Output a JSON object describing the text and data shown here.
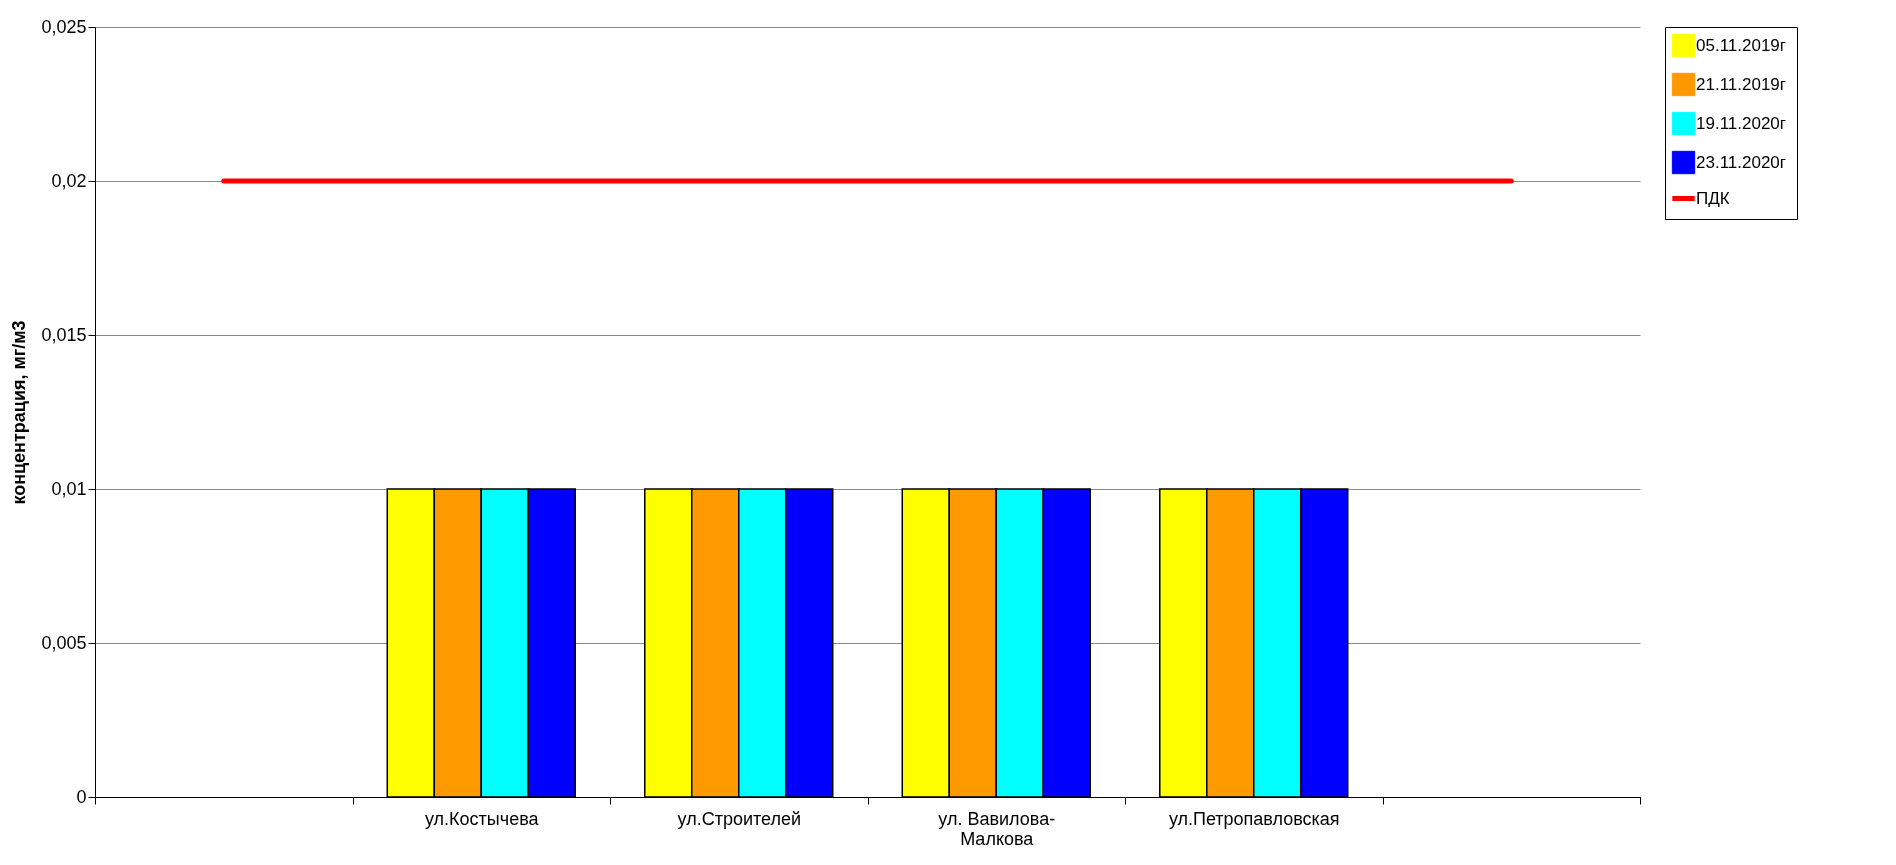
{
  "chart_data": {
    "type": "bar",
    "ylabel": "концентрация, мг/м3",
    "categories": [
      null,
      "ул.Костычева",
      "ул.Строителей",
      "ул. Вавилова-Малкова",
      "ул.Петропавловская",
      null
    ],
    "series": [
      {
        "name": "05.11.2019г",
        "color": "#ffff00",
        "values": [
          null,
          0.01,
          0.01,
          0.01,
          0.01,
          null
        ]
      },
      {
        "name": "21.11.2019г",
        "color": "#ff9900",
        "values": [
          null,
          0.01,
          0.01,
          0.01,
          0.01,
          null
        ]
      },
      {
        "name": "19.11.2020г",
        "color": "#00ffff",
        "values": [
          null,
          0.01,
          0.01,
          0.01,
          0.01,
          null
        ]
      },
      {
        "name": "23.11.2020г",
        "color": "#0000ff",
        "values": [
          null,
          0.01,
          0.01,
          0.01,
          0.01,
          null
        ]
      },
      {
        "name": "ПДК",
        "type": "line",
        "color": "#ff0000",
        "values": [
          0.02,
          0.02,
          0.02,
          0.02,
          0.02,
          0.02
        ]
      }
    ],
    "ylim": [
      0,
      0.025
    ],
    "yticks": [
      0,
      {
        "value": 0.005,
        "label": "0,005"
      },
      {
        "value": 0.01,
        "label": "0,01"
      },
      {
        "value": 0.015,
        "label": "0,015"
      },
      {
        "value": 0.02,
        "label": "0,02"
      },
      {
        "value": 0.025,
        "label": "0,025"
      }
    ],
    "grid": "y",
    "legend": "right"
  }
}
